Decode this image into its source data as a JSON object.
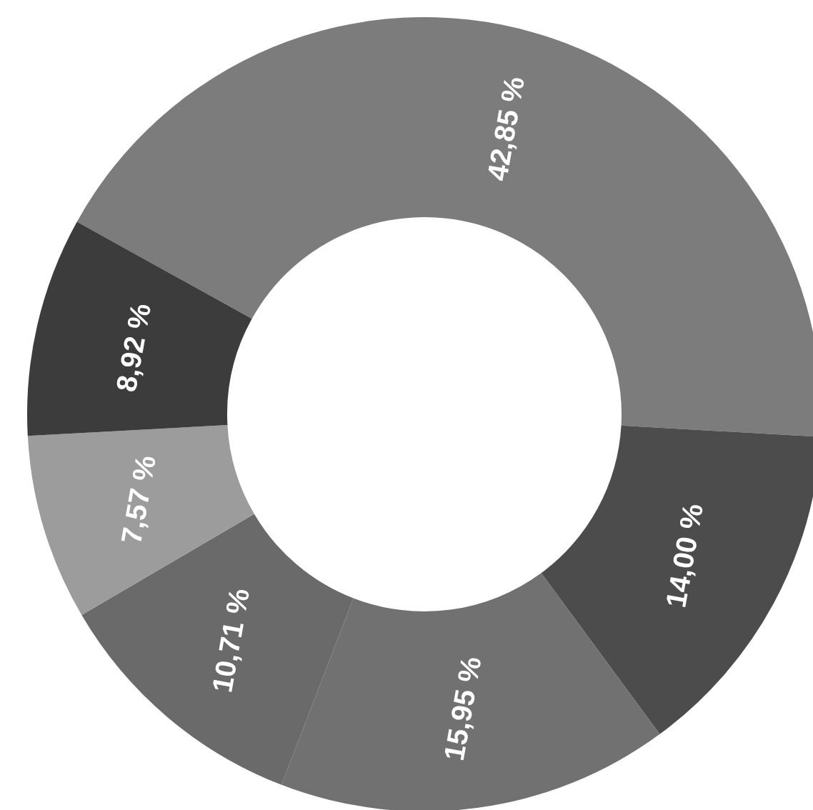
{
  "chart_data": {
    "type": "donut",
    "categories": [
      null,
      null,
      null,
      null,
      null,
      null
    ],
    "values": [
      42.85,
      14.0,
      15.95,
      10.71,
      7.57,
      8.92
    ],
    "colors": [
      "#7c7c7c",
      "#4c4c4c",
      "#717171",
      "#6a6a6a",
      "#9c9c9c",
      "#3c3c3c"
    ],
    "value_labels": [
      "42,85 %",
      "14,00 %",
      "15,95 %",
      "10,71 %",
      "7,57 %",
      "8,92 %"
    ],
    "legend": false
  }
}
